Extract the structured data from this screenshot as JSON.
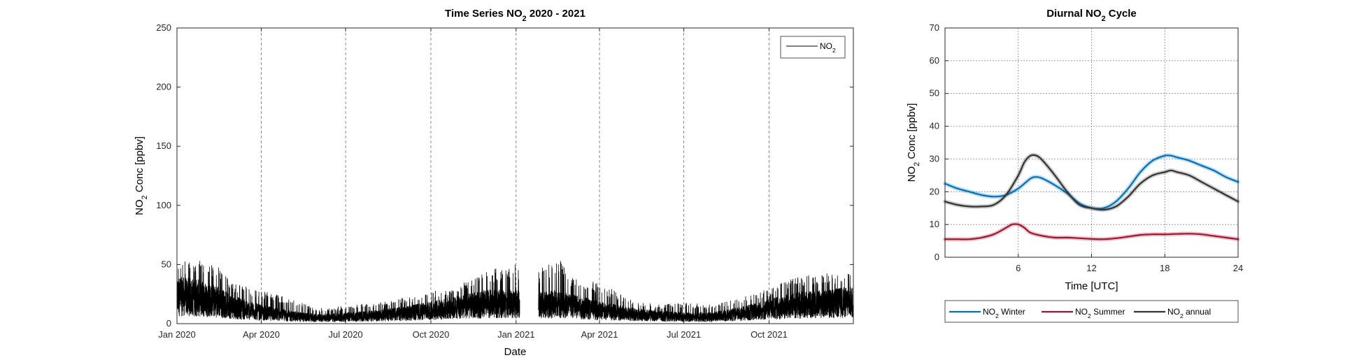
{
  "chart_data": [
    {
      "type": "line",
      "title": "Time Series NO2 2020 - 2021",
      "title_parts": [
        {
          "text": "Time Series NO",
          "sub": false
        },
        {
          "text": "2",
          "sub": true
        },
        {
          "text": " 2020 - 2021",
          "sub": false
        }
      ],
      "xlabel": "Date",
      "ylabel": "NO2 Conc [ppbv]",
      "ylabel_parts": [
        {
          "text": "NO",
          "sub": false
        },
        {
          "text": "2",
          "sub": true
        },
        {
          "text": " Conc [ppbv]",
          "sub": false
        }
      ],
      "x_ticks": [
        "2020-01-01",
        "2020-04-01",
        "2020-07-01",
        "2020-10-01",
        "2021-01-01",
        "2021-04-01",
        "2021-07-01",
        "2021-10-01"
      ],
      "x_tick_labels": [
        "Jan 2020",
        "Apr 2020",
        "Jul 2020",
        "Oct 2020",
        "Jan 2021",
        "Apr 2021",
        "Jul 2021",
        "Oct 2021"
      ],
      "xlim": [
        "2020-01-01",
        "2021-12-31"
      ],
      "ylim": [
        0,
        250
      ],
      "y_ticks": [
        0,
        50,
        100,
        150,
        200,
        250
      ],
      "grid": "vertical dashed at x ticks",
      "legend": {
        "position": "top-right",
        "entries": [
          {
            "text": "NO",
            "sub": "2"
          }
        ]
      },
      "series": [
        {
          "name": "NO2",
          "color": "#000000",
          "resolution": "hourly",
          "envelope": [
            {
              "date": "2020-01-01",
              "mean": 25,
              "peak": 52
            },
            {
              "date": "2020-01-20",
              "mean": 24,
              "peak": 55
            },
            {
              "date": "2020-02-15",
              "mean": 20,
              "peak": 48
            },
            {
              "date": "2020-03-01",
              "mean": 15,
              "peak": 35
            },
            {
              "date": "2020-04-01",
              "mean": 10,
              "peak": 28
            },
            {
              "date": "2020-05-01",
              "mean": 7,
              "peak": 22
            },
            {
              "date": "2020-06-01",
              "mean": 5,
              "peak": 13
            },
            {
              "date": "2020-07-01",
              "mean": 6,
              "peak": 15
            },
            {
              "date": "2020-08-01",
              "mean": 7,
              "peak": 18
            },
            {
              "date": "2020-09-01",
              "mean": 9,
              "peak": 22
            },
            {
              "date": "2020-10-01",
              "mean": 12,
              "peak": 27
            },
            {
              "date": "2020-11-01",
              "mean": 15,
              "peak": 33
            },
            {
              "date": "2020-12-01",
              "mean": 18,
              "peak": 45
            },
            {
              "date": "2020-12-31",
              "mean": 18,
              "peak": 50
            },
            {
              "date": "2021-01-15",
              "mean": 16,
              "peak": 40
            },
            {
              "date": "2021-02-15",
              "mean": 18,
              "peak": 58
            },
            {
              "date": "2021-03-01",
              "mean": 16,
              "peak": 40
            },
            {
              "date": "2021-04-01",
              "mean": 12,
              "peak": 35
            },
            {
              "date": "2021-05-01",
              "mean": 9,
              "peak": 22
            },
            {
              "date": "2021-06-01",
              "mean": 7,
              "peak": 16
            },
            {
              "date": "2021-07-01",
              "mean": 6,
              "peak": 18
            },
            {
              "date": "2021-08-01",
              "mean": 6,
              "peak": 16
            },
            {
              "date": "2021-09-01",
              "mean": 9,
              "peak": 22
            },
            {
              "date": "2021-10-01",
              "mean": 13,
              "peak": 30
            },
            {
              "date": "2021-11-01",
              "mean": 17,
              "peak": 40
            },
            {
              "date": "2021-12-01",
              "mean": 18,
              "peak": 43
            },
            {
              "date": "2021-12-31",
              "mean": 20,
              "peak": 45
            }
          ],
          "gaps": [
            [
              "2021-01-05",
              "2021-01-25"
            ]
          ]
        }
      ]
    },
    {
      "type": "line",
      "title": "Diurnal NO2 Cycle",
      "title_parts": [
        {
          "text": "Diurnal NO",
          "sub": false
        },
        {
          "text": "2",
          "sub": true
        },
        {
          "text": " Cycle",
          "sub": false
        }
      ],
      "xlabel": "Time [UTC]",
      "ylabel": "NO2 Conc [ppbv]",
      "ylabel_parts": [
        {
          "text": "NO",
          "sub": false
        },
        {
          "text": "2",
          "sub": true
        },
        {
          "text": " Conc [ppbv]",
          "sub": false
        }
      ],
      "xlim": [
        0,
        24
      ],
      "ylim": [
        0,
        70
      ],
      "x_ticks": [
        6,
        12,
        18,
        24
      ],
      "y_ticks": [
        0,
        10,
        20,
        30,
        40,
        50,
        60,
        70
      ],
      "grid": "dotted both axes",
      "legend": {
        "position": "below",
        "entries": []
      },
      "series": [
        {
          "name": "NO2 Winter",
          "legend_parts": [
            {
              "text": "NO",
              "sub": false
            },
            {
              "text": "2",
              "sub": true
            },
            {
              "text": " Winter",
              "sub": false
            }
          ],
          "color": "#0072bd",
          "x": [
            0,
            1,
            2,
            3,
            4,
            5,
            6,
            7,
            7.5,
            8,
            9,
            10,
            11,
            12,
            13,
            14,
            15,
            16,
            17,
            18,
            18.5,
            19,
            20,
            21,
            22,
            23,
            24
          ],
          "y": [
            22.5,
            21,
            20,
            19,
            18.5,
            19,
            21,
            24,
            24.5,
            24,
            22,
            19.5,
            16.5,
            15,
            15,
            17,
            21,
            26,
            29.5,
            31,
            31,
            30.5,
            29.5,
            28,
            26.5,
            24.5,
            23
          ]
        },
        {
          "name": "NO2 Summer",
          "legend_parts": [
            {
              "text": "NO",
              "sub": false
            },
            {
              "text": "2",
              "sub": true
            },
            {
              "text": " Summer",
              "sub": false
            }
          ],
          "color": "#a2142f",
          "x": [
            0,
            1,
            2,
            3,
            4,
            5,
            5.5,
            6,
            6.5,
            7,
            8,
            9,
            10,
            11,
            12,
            13,
            14,
            15,
            16,
            17,
            18,
            19,
            20,
            21,
            22,
            23,
            24
          ],
          "y": [
            5.5,
            5.5,
            5.5,
            6,
            7,
            9,
            10,
            10,
            9,
            7.5,
            6.5,
            6,
            6,
            5.8,
            5.6,
            5.5,
            5.8,
            6.3,
            6.8,
            7,
            7,
            7.1,
            7.2,
            7,
            6.5,
            6,
            5.5
          ]
        },
        {
          "name": "NO2 annual",
          "legend_parts": [
            {
              "text": "NO",
              "sub": false
            },
            {
              "text": "2",
              "sub": true
            },
            {
              "text": " annual",
              "sub": false
            }
          ],
          "color": "#333333",
          "x": [
            0,
            1,
            2,
            3,
            4,
            5,
            6,
            6.5,
            7,
            7.5,
            8,
            9,
            10,
            11,
            12,
            13,
            14,
            15,
            16,
            17,
            18,
            18.5,
            19,
            20,
            21,
            22,
            23,
            24
          ],
          "y": [
            17,
            16,
            15.5,
            15.5,
            16,
            19,
            25,
            29,
            31,
            31,
            29.5,
            25,
            20,
            16,
            15,
            14.5,
            15.5,
            18.5,
            22.5,
            25,
            26,
            26.5,
            26,
            25,
            23,
            21,
            19,
            17
          ]
        }
      ]
    }
  ]
}
